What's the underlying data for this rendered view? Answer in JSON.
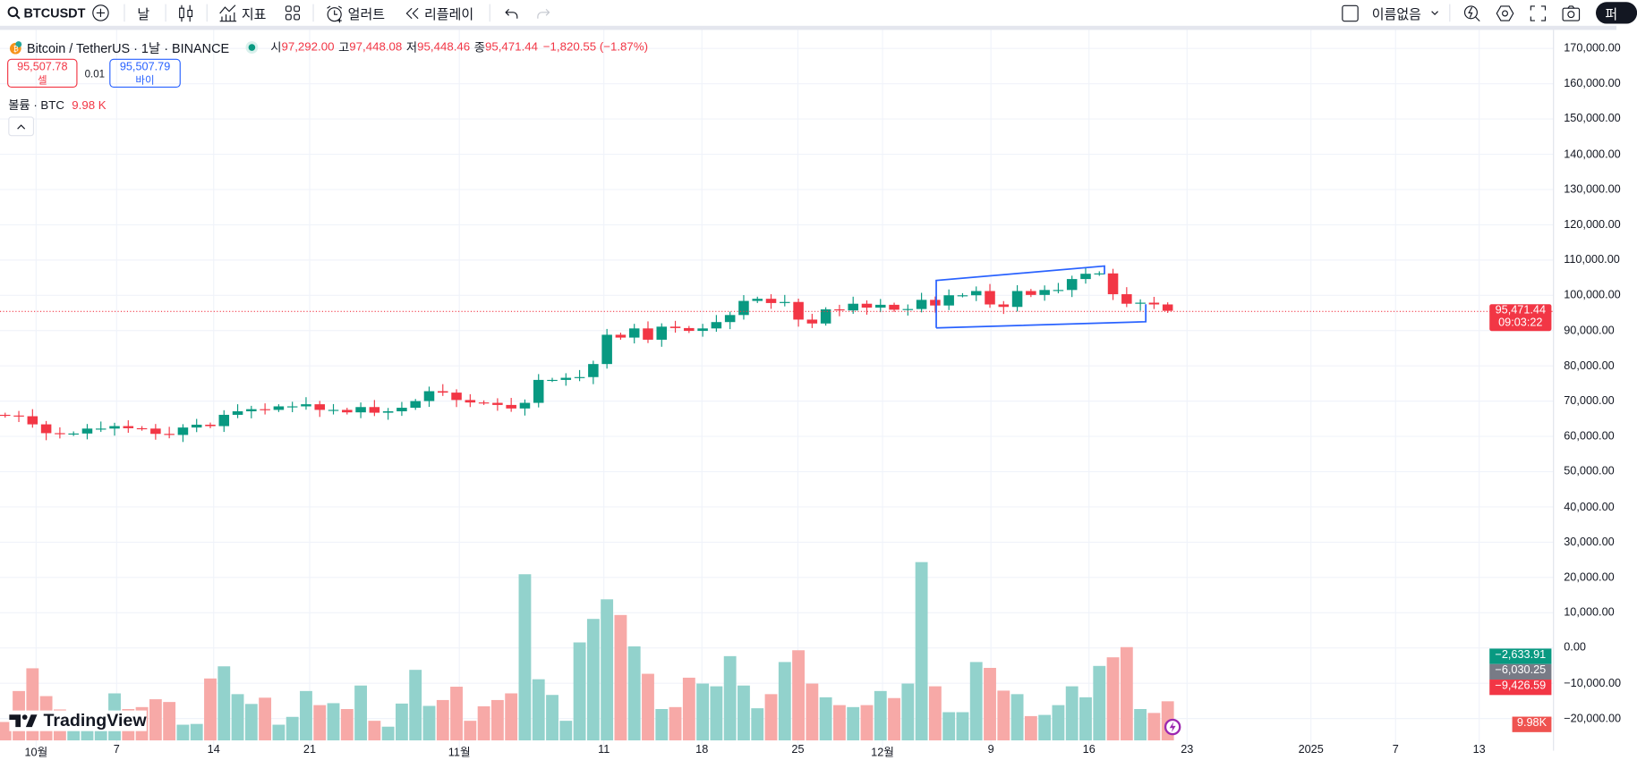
{
  "toolbar": {
    "symbol": "BTCUSDT",
    "interval": "날",
    "indicators_label": "지표",
    "alert_label": "얼러트",
    "replay_label": "리플레이",
    "layout_name": "이름없음",
    "publish_label": "퍼"
  },
  "legend": {
    "title": "Bitcoin / TetherUS · 1날 · BINANCE",
    "open_label": "시",
    "open": "97,292.00",
    "high_label": "고",
    "high": "97,448.08",
    "low_label": "저",
    "low": "95,448.46",
    "close_label": "종",
    "close": "95,471.44",
    "change": "−1,820.55 (−1.87%)"
  },
  "trade": {
    "sell_price": "95,507.78",
    "sell_label": "셀",
    "spread": "0.01",
    "buy_price": "95,507.79",
    "buy_label": "바이"
  },
  "volume_legend": {
    "label": "볼륨 · BTC",
    "value": "9.98 K"
  },
  "price_axis": [
    "170,000.00",
    "160,000.00",
    "150,000.00",
    "140,000.00",
    "130,000.00",
    "120,000.00",
    "110,000.00",
    "100,000.00",
    "90,000.00",
    "80,000.00",
    "70,000.00",
    "60,000.00",
    "50,000.00",
    "40,000.00",
    "30,000.00",
    "20,000.00",
    "10,000.00",
    "0.00",
    "−10,000.00",
    "−20,000.00"
  ],
  "price_tags": {
    "last_price": "95,471.44",
    "countdown": "09:03:22",
    "tag1": "−2,633.91",
    "tag2": "−6,030.25",
    "tag3": "−9,426.59",
    "volume_tag": "9.98K"
  },
  "time_axis": [
    "10월",
    "7",
    "14",
    "21",
    "11월",
    "11",
    "18",
    "25",
    "12월",
    "9",
    "16",
    "23",
    "2025",
    "7",
    "13"
  ],
  "branding": "TradingView",
  "colors": {
    "up": "#089981",
    "down": "#f23645",
    "drawing": "#2962ff",
    "volume_up": "#92d2cc",
    "volume_down": "#f7a9a7"
  },
  "chart_data": {
    "type": "candlestick",
    "unit": "thousand USDT",
    "closes": [
      65.8,
      65.6,
      63.3,
      60.8,
      60.6,
      60.7,
      62.1,
      62.1,
      62.8,
      62.2,
      62.1,
      60.6,
      60.3,
      62.4,
      63.2,
      62.8,
      66.0,
      67.0,
      67.6,
      67.4,
      68.4,
      68.4,
      69.0,
      67.4,
      67.4,
      66.7,
      68.2,
      66.6,
      67.0,
      68.0,
      69.9,
      72.7,
      72.3,
      70.2,
      69.5,
      69.4,
      68.8,
      67.8,
      69.4,
      75.9,
      75.9,
      76.5,
      76.7,
      80.4,
      88.7,
      87.9,
      90.5,
      87.3,
      91.0,
      90.6,
      89.8,
      90.5,
      92.3,
      94.3,
      98.3,
      98.9,
      97.7,
      98.0,
      93.0,
      91.9,
      95.9,
      95.6,
      97.5,
      96.4,
      97.2,
      95.8,
      96.0,
      98.6,
      97.0,
      99.9,
      99.9,
      101.1,
      97.3,
      96.6,
      101.1,
      100.0,
      101.4,
      101.4,
      104.5,
      106.0,
      106.1,
      100.2,
      97.5,
      97.8,
      97.3,
      95.5
    ],
    "first_open": 66.0,
    "volumes_k": [
      4.7,
      12.6,
      18.4,
      11.3,
      7.9,
      6.0,
      4.0,
      3.0,
      12.0,
      8.0,
      8.5,
      10.5,
      9.8,
      4.0,
      4.2,
      15.8,
      18.9,
      11.8,
      9.3,
      10.9,
      4.0,
      6.0,
      12.6,
      9.0,
      9.5,
      8.0,
      14.0,
      5.0,
      3.5,
      9.4,
      18.0,
      8.8,
      10.3,
      13.7,
      5.0,
      8.7,
      10.3,
      12.0,
      42.4,
      15.6,
      11.6,
      5.0,
      25.0,
      31.0,
      36.0,
      32.0,
      24.0,
      17.0,
      8.0,
      8.5,
      16.0,
      14.5,
      13.8,
      21.5,
      14.0,
      8.2,
      11.8,
      20.0,
      23.0,
      14.5,
      11.0,
      9.0,
      8.5,
      9.0,
      12.6,
      10.8,
      14.5,
      45.5,
      13.8,
      7.2,
      7.2,
      20.0,
      18.5,
      12.7,
      11.8,
      6.2,
      6.5,
      9.0,
      13.8,
      11.0,
      19.0,
      21.2,
      23.8,
      8.0,
      7.0,
      9.98
    ]
  }
}
